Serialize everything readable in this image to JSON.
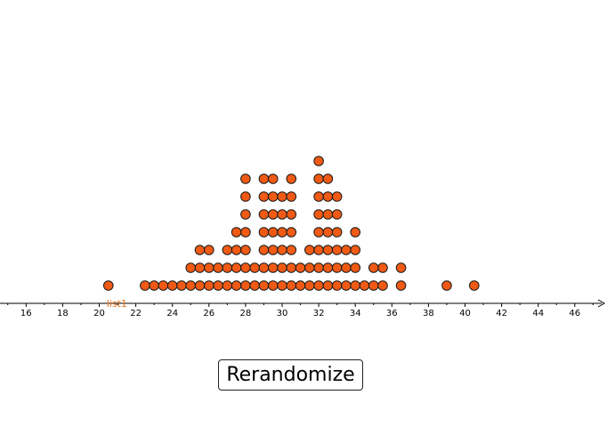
{
  "graphics_view": {
    "list_label": "list1",
    "dot_color": "#f05a14",
    "dot_stroke": "#1a1a1a",
    "axis_color": "#000000",
    "label_color": "#e8741c"
  },
  "controls": {
    "rerandomize_label": "Rerandomize"
  },
  "chart_data": {
    "type": "scatter",
    "subtype": "dot-plot",
    "title": "",
    "xlabel": "",
    "ylabel": "",
    "xlim": [
      15,
      48
    ],
    "x_ticks": [
      16,
      18,
      20,
      22,
      24,
      26,
      28,
      30,
      32,
      34,
      36,
      38,
      40,
      42,
      44,
      46
    ],
    "grid": false,
    "series": [
      {
        "name": "list1",
        "stacks": [
          {
            "x": 20.5,
            "count": 1
          },
          {
            "x": 22.5,
            "count": 1
          },
          {
            "x": 23,
            "count": 1
          },
          {
            "x": 23.5,
            "count": 1
          },
          {
            "x": 24,
            "count": 1
          },
          {
            "x": 24.5,
            "count": 1
          },
          {
            "x": 25,
            "count": 2
          },
          {
            "x": 25.5,
            "count": 3
          },
          {
            "x": 26,
            "count": 3
          },
          {
            "x": 26.5,
            "count": 2
          },
          {
            "x": 27,
            "count": 3
          },
          {
            "x": 27.5,
            "count": 4
          },
          {
            "x": 28,
            "count": 7
          },
          {
            "x": 28.5,
            "count": 2
          },
          {
            "x": 29,
            "count": 7
          },
          {
            "x": 29.5,
            "count": 7
          },
          {
            "x": 30,
            "count": 6
          },
          {
            "x": 30.5,
            "count": 7
          },
          {
            "x": 31,
            "count": 2
          },
          {
            "x": 31.5,
            "count": 3
          },
          {
            "x": 32,
            "count": 8
          },
          {
            "x": 32.5,
            "count": 7
          },
          {
            "x": 33,
            "count": 6
          },
          {
            "x": 33.5,
            "count": 3
          },
          {
            "x": 34,
            "count": 4
          },
          {
            "x": 34.5,
            "count": 1
          },
          {
            "x": 35,
            "count": 2
          },
          {
            "x": 35.5,
            "count": 2
          },
          {
            "x": 36.5,
            "count": 2
          },
          {
            "x": 39,
            "count": 1
          },
          {
            "x": 40.5,
            "count": 1
          }
        ]
      }
    ]
  }
}
